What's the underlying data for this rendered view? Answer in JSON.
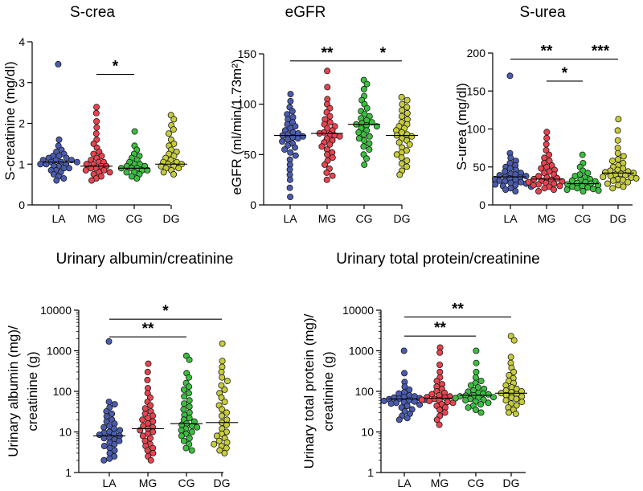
{
  "figure": {
    "group_colors": {
      "LA": "#4a5cb0",
      "MG": "#e8434f",
      "CG": "#3bbf3f",
      "DG": "#c7cc3a"
    }
  },
  "chart_data": [
    {
      "type": "scatter",
      "title": "S-crea",
      "ylabel": "S-creatinine (mg/dl)",
      "xlabel": "",
      "categories": [
        "LA",
        "MG",
        "CG",
        "DG"
      ],
      "scale": "linear",
      "ylim": [
        0,
        4
      ],
      "yticks": [
        0,
        1,
        2,
        3,
        4
      ],
      "ytick_labels": [
        "0",
        "1",
        "2",
        "3",
        "4"
      ],
      "medians": [
        1.05,
        0.95,
        0.9,
        1.0
      ],
      "series": [
        {
          "name": "LA",
          "values": [
            3.45,
            1.6,
            1.45,
            1.35,
            1.3,
            1.25,
            1.2,
            1.2,
            1.15,
            1.15,
            1.1,
            1.1,
            1.1,
            1.05,
            1.05,
            1.05,
            1.0,
            1.0,
            1.0,
            0.95,
            0.95,
            0.9,
            0.9,
            0.85,
            0.85,
            0.8,
            0.75,
            0.7,
            0.65,
            0.6
          ]
        },
        {
          "name": "MG",
          "values": [
            2.4,
            2.25,
            2.05,
            1.9,
            1.75,
            1.6,
            1.5,
            1.4,
            1.3,
            1.25,
            1.2,
            1.15,
            1.1,
            1.05,
            1.05,
            1.0,
            1.0,
            0.95,
            0.95,
            0.9,
            0.9,
            0.85,
            0.85,
            0.8,
            0.8,
            0.75,
            0.7,
            0.65,
            0.6
          ]
        },
        {
          "name": "CG",
          "values": [
            1.8,
            1.45,
            1.35,
            1.25,
            1.2,
            1.15,
            1.1,
            1.05,
            1.0,
            1.0,
            0.95,
            0.95,
            0.9,
            0.9,
            0.9,
            0.85,
            0.85,
            0.8,
            0.8,
            0.75,
            0.7,
            0.65
          ]
        },
        {
          "name": "DG",
          "values": [
            2.2,
            2.1,
            1.95,
            1.85,
            1.75,
            1.6,
            1.5,
            1.45,
            1.35,
            1.3,
            1.25,
            1.2,
            1.15,
            1.1,
            1.05,
            1.05,
            1.0,
            1.0,
            0.95,
            0.95,
            0.9,
            0.9,
            0.85,
            0.8,
            0.75
          ]
        }
      ],
      "significance": [
        {
          "from": "MG",
          "to": "CG",
          "label": "*",
          "y": 3.2
        }
      ]
    },
    {
      "type": "scatter",
      "title": "eGFR",
      "ylabel": "eGFR (ml/min/1.73m²)",
      "xlabel": "",
      "categories": [
        "LA",
        "MG",
        "CG",
        "DG"
      ],
      "scale": "linear",
      "ylim": [
        0,
        150
      ],
      "yticks": [
        0,
        50,
        100,
        150
      ],
      "ytick_labels": [
        "0",
        "50",
        "100",
        "150"
      ],
      "medians": [
        69,
        71,
        80,
        69
      ],
      "series": [
        {
          "name": "LA",
          "values": [
            110,
            103,
            97,
            93,
            90,
            87,
            85,
            82,
            80,
            78,
            76,
            74,
            72,
            71,
            70,
            69,
            68,
            67,
            66,
            65,
            63,
            61,
            59,
            57,
            55,
            52,
            49,
            45,
            40,
            35,
            30,
            25,
            17,
            8
          ]
        },
        {
          "name": "MG",
          "values": [
            133,
            117,
            105,
            100,
            96,
            92,
            88,
            85,
            82,
            80,
            78,
            76,
            74,
            72,
            71,
            70,
            69,
            68,
            66,
            64,
            62,
            60,
            58,
            55,
            52,
            50,
            47,
            44,
            40,
            36,
            32,
            29,
            25
          ]
        },
        {
          "name": "CG",
          "values": [
            124,
            120,
            115,
            108,
            104,
            100,
            96,
            93,
            90,
            88,
            86,
            84,
            82,
            81,
            80,
            79,
            78,
            76,
            74,
            72,
            70,
            68,
            66,
            64,
            61,
            58,
            55,
            50,
            46,
            40
          ]
        },
        {
          "name": "DG",
          "values": [
            107,
            104,
            100,
            97,
            94,
            91,
            88,
            85,
            82,
            80,
            78,
            76,
            74,
            72,
            70,
            69,
            68,
            66,
            64,
            62,
            60,
            57,
            54,
            52,
            50,
            47,
            44,
            41,
            38,
            34,
            30
          ]
        }
      ],
      "significance": [
        {
          "from": "LA",
          "to": "CG",
          "label": "**",
          "y": 143
        },
        {
          "from": "CG",
          "to": "DG",
          "label": "*",
          "y": 143
        }
      ]
    },
    {
      "type": "scatter",
      "title": "S-urea",
      "ylabel": "S-urea (mg/dl)",
      "xlabel": "",
      "categories": [
        "LA",
        "MG",
        "CG",
        "DG"
      ],
      "scale": "linear",
      "ylim": [
        0,
        200
      ],
      "yticks": [
        0,
        50,
        100,
        150,
        200
      ],
      "ytick_labels": [
        "0",
        "50",
        "100",
        "150",
        "200"
      ],
      "medians": [
        37,
        34,
        28,
        42
      ],
      "series": [
        {
          "name": "LA",
          "values": [
            170,
            68,
            62,
            58,
            55,
            52,
            50,
            48,
            46,
            44,
            42,
            41,
            40,
            39,
            38,
            37,
            36,
            35,
            34,
            33,
            32,
            31,
            30,
            29,
            28,
            27,
            26,
            25,
            24,
            22,
            20,
            18
          ]
        },
        {
          "name": "MG",
          "values": [
            96,
            88,
            80,
            72,
            66,
            62,
            58,
            55,
            52,
            50,
            48,
            46,
            44,
            42,
            40,
            38,
            36,
            35,
            34,
            33,
            32,
            31,
            30,
            29,
            28,
            27,
            26,
            25,
            24,
            22,
            20,
            18
          ]
        },
        {
          "name": "CG",
          "values": [
            66,
            55,
            50,
            45,
            42,
            40,
            38,
            36,
            34,
            33,
            32,
            31,
            30,
            29,
            28,
            27,
            26,
            25,
            24,
            23,
            22,
            21,
            20,
            19,
            18
          ]
        },
        {
          "name": "DG",
          "values": [
            113,
            98,
            85,
            75,
            68,
            64,
            60,
            58,
            55,
            52,
            50,
            48,
            46,
            45,
            44,
            43,
            42,
            41,
            40,
            39,
            38,
            37,
            36,
            35,
            34,
            33,
            32,
            30,
            28,
            26,
            24,
            22
          ]
        }
      ],
      "significance": [
        {
          "from": "LA",
          "to": "CG",
          "label": "**",
          "y": 192
        },
        {
          "from": "CG",
          "to": "DG",
          "label": "***",
          "y": 192
        },
        {
          "from": "MG",
          "to": "CG",
          "label": "*",
          "y": 163
        }
      ]
    },
    {
      "type": "scatter",
      "title": "Urinary albumin/creatinine",
      "ylabel": [
        "Urinary albumin (mg)/",
        "creatinine (g)"
      ],
      "xlabel": "",
      "categories": [
        "LA",
        "MG",
        "CG",
        "DG"
      ],
      "scale": "log",
      "ylim": [
        1,
        10000
      ],
      "yticks": [
        1,
        10,
        100,
        1000,
        10000
      ],
      "ytick_labels": [
        "1",
        "10",
        "100",
        "1000",
        "10000"
      ],
      "medians": [
        8,
        12,
        16,
        17
      ],
      "series": [
        {
          "name": "LA",
          "values": [
            1700,
            55,
            48,
            40,
            32,
            28,
            24,
            20,
            18,
            16,
            14,
            13,
            12,
            11,
            10,
            9.5,
            9,
            8.5,
            8,
            7.5,
            7,
            6.5,
            6,
            5.5,
            5,
            4.5,
            4,
            3.5,
            3,
            2.5,
            2.2,
            2
          ]
        },
        {
          "name": "MG",
          "values": [
            480,
            300,
            190,
            120,
            90,
            70,
            55,
            45,
            38,
            32,
            28,
            25,
            22,
            20,
            18,
            16,
            14,
            13,
            12,
            11,
            10,
            9,
            8,
            7,
            6,
            5,
            4.5,
            4,
            3.5,
            3,
            2.5,
            2
          ]
        },
        {
          "name": "CG",
          "values": [
            750,
            600,
            280,
            220,
            160,
            130,
            110,
            90,
            75,
            60,
            50,
            42,
            36,
            30,
            26,
            22,
            20,
            18,
            16,
            15,
            14,
            13,
            12,
            11,
            10,
            9,
            8,
            7,
            6,
            5,
            4,
            3.5
          ]
        },
        {
          "name": "DG",
          "values": [
            1500,
            560,
            400,
            300,
            220,
            180,
            140,
            110,
            90,
            70,
            55,
            45,
            36,
            30,
            25,
            20,
            17,
            15,
            12,
            10,
            9,
            8,
            7,
            6,
            5.5,
            5,
            4.5,
            4,
            3.5,
            3
          ]
        }
      ],
      "significance": [
        {
          "from": "LA",
          "to": "CG",
          "label": "**",
          "y": 2200
        },
        {
          "from": "LA",
          "to": "DG",
          "label": "*",
          "y": 6000
        }
      ]
    },
    {
      "type": "scatter",
      "title": "Urinary total protein/creatinine",
      "ylabel": [
        "Urinary total protein (mg)/",
        "creatinine (g)"
      ],
      "xlabel": "",
      "categories": [
        "LA",
        "MG",
        "CG",
        "DG"
      ],
      "scale": "log",
      "ylim": [
        1,
        10000
      ],
      "yticks": [
        1,
        10,
        100,
        1000,
        10000
      ],
      "ytick_labels": [
        "1",
        "10",
        "100",
        "1000",
        "10000"
      ],
      "medians": [
        65,
        68,
        80,
        90
      ],
      "series": [
        {
          "name": "LA",
          "values": [
            1000,
            280,
            170,
            130,
            110,
            95,
            88,
            80,
            75,
            72,
            70,
            68,
            66,
            64,
            62,
            60,
            58,
            56,
            54,
            52,
            50,
            47,
            44,
            40,
            36,
            32,
            28,
            25,
            22,
            20
          ]
        },
        {
          "name": "MG",
          "values": [
            1200,
            900,
            450,
            300,
            220,
            180,
            150,
            130,
            115,
            100,
            92,
            85,
            80,
            75,
            72,
            70,
            68,
            65,
            62,
            60,
            58,
            55,
            52,
            48,
            44,
            40,
            35,
            30,
            25,
            20,
            15
          ]
        },
        {
          "name": "CG",
          "values": [
            1000,
            500,
            300,
            220,
            180,
            160,
            140,
            125,
            115,
            105,
            98,
            92,
            88,
            84,
            80,
            78,
            75,
            72,
            70,
            68,
            65,
            62,
            60,
            56,
            52,
            48,
            44,
            40,
            35,
            30
          ]
        },
        {
          "name": "DG",
          "values": [
            2300,
            1800,
            700,
            500,
            380,
            300,
            250,
            210,
            180,
            160,
            140,
            125,
            115,
            105,
            100,
            95,
            90,
            85,
            80,
            75,
            70,
            65,
            60,
            55,
            50,
            45,
            40,
            35,
            30,
            28
          ]
        }
      ],
      "significance": [
        {
          "from": "LA",
          "to": "CG",
          "label": "**",
          "y": 2300
        },
        {
          "from": "LA",
          "to": "DG",
          "label": "**",
          "y": 6800
        }
      ]
    }
  ]
}
